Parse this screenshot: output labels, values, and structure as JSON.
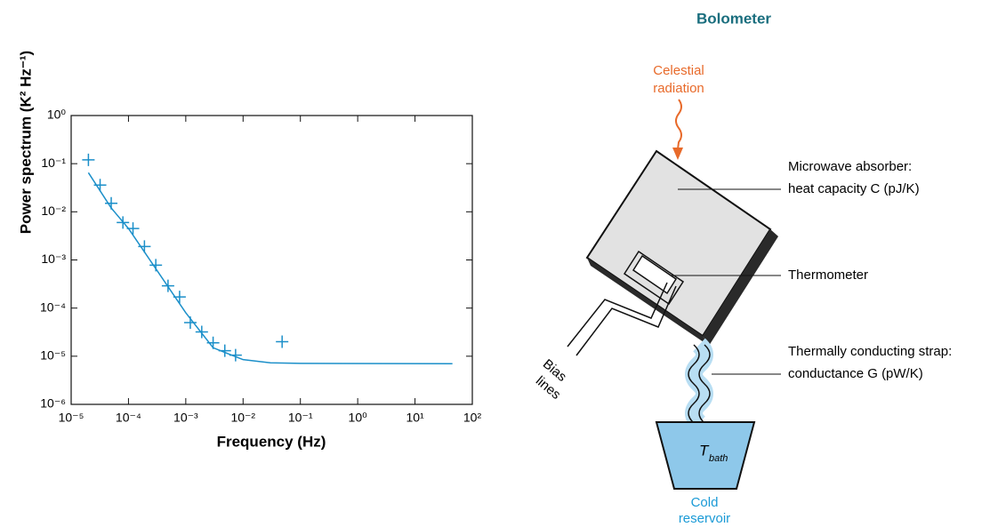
{
  "chart_data": {
    "type": "scatter",
    "xlabel": "Frequency (Hz)",
    "ylabel": "Power spectrum (K² Hz⁻¹)",
    "xscale": "log",
    "yscale": "log",
    "color": "#1b8fc9",
    "xlim": [
      1e-05,
      100
    ],
    "ylim": [
      1e-06,
      1
    ],
    "xticks": [
      {
        "value": 1e-05,
        "label": "10⁻⁵"
      },
      {
        "value": 0.0001,
        "label": "10⁻⁴"
      },
      {
        "value": 0.001,
        "label": "10⁻³"
      },
      {
        "value": 0.01,
        "label": "10⁻²"
      },
      {
        "value": 0.1,
        "label": "10⁻¹"
      },
      {
        "value": 1,
        "label": "10⁰"
      },
      {
        "value": 10,
        "label": "10¹"
      },
      {
        "value": 100,
        "label": "10²"
      }
    ],
    "yticks": [
      {
        "value": 1e-06,
        "label": "10⁻⁶"
      },
      {
        "value": 1e-05,
        "label": "10⁻⁵"
      },
      {
        "value": 0.0001,
        "label": "10⁻⁴"
      },
      {
        "value": 0.001,
        "label": "10⁻³"
      },
      {
        "value": 0.01,
        "label": "10⁻²"
      },
      {
        "value": 0.1,
        "label": "10⁻¹"
      },
      {
        "value": 1,
        "label": "10⁰"
      }
    ],
    "points": {
      "x": [
        2e-05,
        3.2e-05,
        5e-05,
        8e-05,
        0.00012,
        0.00019,
        0.0003,
        0.00049,
        0.00078,
        0.0012,
        0.0019,
        0.003,
        0.0048,
        0.0074,
        0.048
      ],
      "y": [
        0.12,
        0.036,
        0.015,
        0.006,
        0.0045,
        0.0019,
        0.00078,
        0.00029,
        0.00017,
        5e-05,
        3.2e-05,
        1.9e-05,
        1.3e-05,
        1.05e-05,
        2e-05
      ]
    },
    "fit": {
      "x": [
        2e-05,
        5e-05,
        0.0001,
        0.001,
        0.003,
        0.01,
        0.03,
        0.1,
        45
      ],
      "y": [
        0.065,
        0.012,
        0.0045,
        8e-05,
        1.5e-05,
        8.5e-06,
        7.3e-06,
        7.1e-06,
        7e-06
      ]
    }
  },
  "diagram": {
    "title": "Bolometer",
    "celestial": [
      "Celestial",
      "radiation"
    ],
    "absorber": [
      "Microwave absorber:",
      "heat capacity C (pJ/K)"
    ],
    "thermometer": "Thermometer",
    "strap": [
      "Thermally conducting strap:",
      "conductance G (pW/K)"
    ],
    "bias_lines": [
      "Bias",
      "lines"
    ],
    "t_bath": {
      "main": "T",
      "sub": "bath"
    },
    "reservoir": [
      "Cold",
      "reservoir"
    ]
  }
}
